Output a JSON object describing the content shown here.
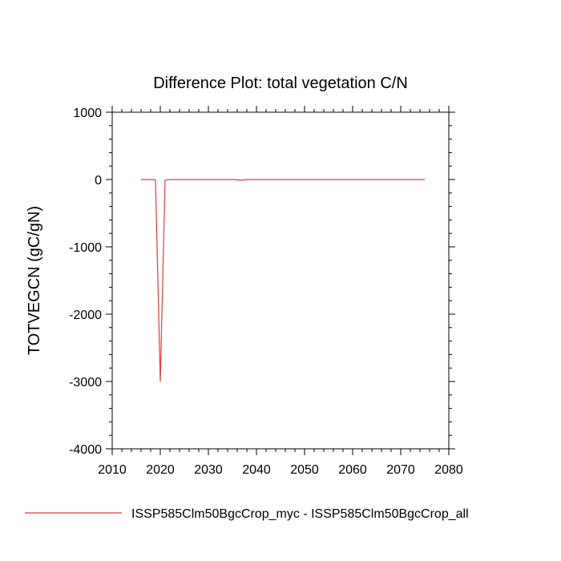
{
  "chart_data": {
    "type": "line",
    "title": "Difference Plot: total vegetation C/N",
    "xlabel": "",
    "ylabel": "TOTVEGCN  (gC/gN)",
    "xlim": [
      2010,
      2080
    ],
    "ylim": [
      -4000,
      1000
    ],
    "xticks": [
      2010,
      2020,
      2030,
      2040,
      2050,
      2060,
      2070,
      2080
    ],
    "yticks": [
      -4000,
      -3000,
      -2000,
      -1000,
      0,
      1000
    ],
    "grid": false,
    "legend_position": "bottom",
    "series": [
      {
        "name": "ISSP585Clm50BgcCrop_myc - ISSP585Clm50BgcCrop_all",
        "color": "#e03c3c",
        "x": [
          2016,
          2017,
          2018,
          2019,
          2020,
          2021,
          2022,
          2023,
          2025,
          2030,
          2035,
          2037,
          2038,
          2040,
          2045,
          2050,
          2055,
          2060,
          2065,
          2070,
          2075
        ],
        "y": [
          0,
          0,
          0,
          -5,
          -3000,
          -10,
          0,
          0,
          0,
          0,
          0,
          -10,
          0,
          0,
          0,
          0,
          0,
          0,
          0,
          0,
          0
        ]
      }
    ]
  }
}
